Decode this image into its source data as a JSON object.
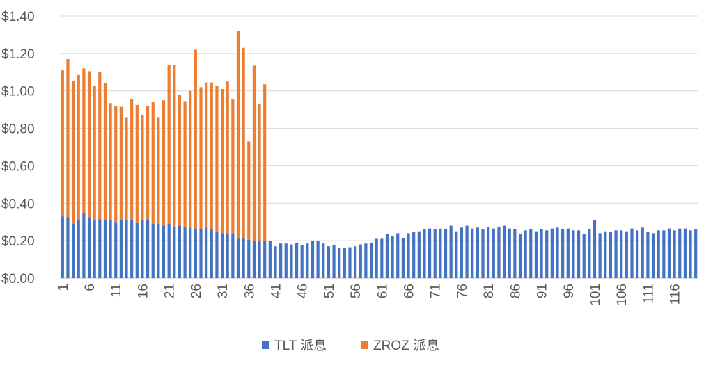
{
  "chart_data": {
    "type": "bar",
    "stacked": true,
    "x": [
      1,
      2,
      3,
      4,
      5,
      6,
      7,
      8,
      9,
      10,
      11,
      12,
      13,
      14,
      15,
      16,
      17,
      18,
      19,
      20,
      21,
      22,
      23,
      24,
      25,
      26,
      27,
      28,
      29,
      30,
      31,
      32,
      33,
      34,
      35,
      36,
      37,
      38,
      39,
      40,
      41,
      42,
      43,
      44,
      45,
      46,
      47,
      48,
      49,
      50,
      51,
      52,
      53,
      54,
      55,
      56,
      57,
      58,
      59,
      60,
      61,
      62,
      63,
      64,
      65,
      66,
      67,
      68,
      69,
      70,
      71,
      72,
      73,
      74,
      75,
      76,
      77,
      78,
      79,
      80,
      81,
      82,
      83,
      84,
      85,
      86,
      87,
      88,
      89,
      90,
      91,
      92,
      93,
      94,
      95,
      96,
      97,
      98,
      99,
      100,
      101,
      102,
      103,
      104,
      105,
      106,
      107,
      108,
      109,
      110,
      111,
      112,
      113,
      114,
      115,
      116,
      117,
      118,
      119,
      120
    ],
    "x_tick_labels": [
      "1",
      "6",
      "11",
      "16",
      "21",
      "26",
      "31",
      "36",
      "41",
      "46",
      "51",
      "56",
      "61",
      "66",
      "71",
      "76",
      "81",
      "86",
      "91",
      "96",
      "101",
      "106",
      "111",
      "116"
    ],
    "series": [
      {
        "name": "TLT 派息",
        "color": "#4472C4",
        "values": [
          0.33,
          0.325,
          0.29,
          0.31,
          0.35,
          0.325,
          0.31,
          0.315,
          0.31,
          0.31,
          0.3,
          0.31,
          0.31,
          0.31,
          0.295,
          0.31,
          0.31,
          0.29,
          0.29,
          0.28,
          0.29,
          0.275,
          0.28,
          0.275,
          0.27,
          0.265,
          0.26,
          0.27,
          0.26,
          0.245,
          0.24,
          0.235,
          0.235,
          0.21,
          0.215,
          0.205,
          0.2,
          0.2,
          0.2,
          0.2,
          0.17,
          0.185,
          0.185,
          0.18,
          0.19,
          0.175,
          0.185,
          0.2,
          0.2,
          0.185,
          0.17,
          0.175,
          0.16,
          0.16,
          0.165,
          0.17,
          0.18,
          0.185,
          0.19,
          0.21,
          0.21,
          0.235,
          0.225,
          0.24,
          0.215,
          0.24,
          0.245,
          0.25,
          0.26,
          0.265,
          0.26,
          0.265,
          0.26,
          0.28,
          0.25,
          0.27,
          0.28,
          0.265,
          0.27,
          0.26,
          0.275,
          0.265,
          0.275,
          0.28,
          0.265,
          0.26,
          0.235,
          0.255,
          0.26,
          0.25,
          0.26,
          0.255,
          0.265,
          0.27,
          0.26,
          0.265,
          0.255,
          0.255,
          0.235,
          0.26,
          0.31,
          0.24,
          0.25,
          0.245,
          0.255,
          0.255,
          0.25,
          0.265,
          0.255,
          0.27,
          0.245,
          0.24,
          0.255,
          0.255,
          0.265,
          0.255,
          0.265,
          0.265,
          0.255,
          0.26
        ]
      },
      {
        "name": "ZROZ 派息",
        "color": "#ED7D31",
        "values": [
          0.78,
          0.845,
          0.765,
          0.775,
          0.77,
          0.78,
          0.715,
          0.785,
          0.73,
          0.625,
          0.62,
          0.605,
          0.55,
          0.645,
          0.63,
          0.56,
          0.61,
          0.65,
          0.57,
          0.67,
          0.85,
          0.865,
          0.7,
          0.67,
          0.73,
          0.955,
          0.76,
          0.775,
          0.785,
          0.78,
          0.77,
          0.815,
          0.72,
          1.11,
          1.015,
          0.525,
          0.935,
          0.73,
          0.835,
          0,
          0,
          0,
          0,
          0,
          0,
          0,
          0,
          0,
          0,
          0,
          0,
          0,
          0,
          0,
          0,
          0,
          0,
          0,
          0,
          0,
          0,
          0,
          0,
          0,
          0,
          0,
          0,
          0,
          0,
          0,
          0,
          0,
          0,
          0,
          0,
          0,
          0,
          0,
          0,
          0,
          0,
          0,
          0,
          0,
          0,
          0,
          0,
          0,
          0,
          0,
          0,
          0,
          0,
          0,
          0,
          0,
          0,
          0,
          0,
          0,
          0,
          0,
          0,
          0,
          0,
          0,
          0,
          0,
          0,
          0,
          0,
          0,
          0,
          0,
          0,
          0,
          0,
          0,
          0,
          0
        ]
      }
    ],
    "ylim": [
      0,
      1.4
    ],
    "y_ticks": [
      0,
      0.2,
      0.4,
      0.6,
      0.8,
      1.0,
      1.2,
      1.4
    ],
    "y_tick_labels": [
      "$0.00",
      "$0.20",
      "$0.40",
      "$0.60",
      "$0.80",
      "$1.00",
      "$1.20",
      "$1.40"
    ],
    "grid": true,
    "legend_position": "bottom",
    "title": "",
    "xlabel": "",
    "ylabel": ""
  }
}
